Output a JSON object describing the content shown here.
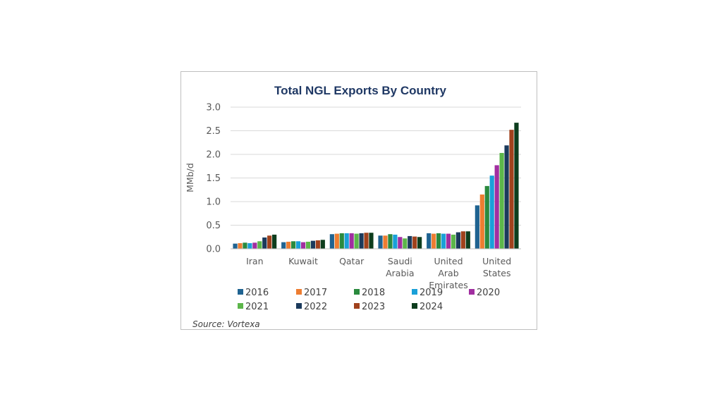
{
  "chart_data": {
    "type": "bar",
    "title": "Total NGL Exports By Country",
    "ylabel": "MMb/d",
    "xlabel": "",
    "ylim": [
      0,
      3.0
    ],
    "yticks": [
      "0.0",
      "0.5",
      "1.0",
      "1.5",
      "2.0",
      "2.5",
      "3.0"
    ],
    "grid": true,
    "legend_position": "bottom",
    "categories": [
      [
        "Iran"
      ],
      [
        "Kuwait"
      ],
      [
        "Qatar"
      ],
      [
        "Saudi",
        "Arabia"
      ],
      [
        "United",
        "Arab",
        "Emirates"
      ],
      [
        "United",
        "States"
      ]
    ],
    "series": [
      {
        "name": "2016",
        "color": "#1f6391",
        "values": [
          0.11,
          0.14,
          0.31,
          0.28,
          0.33,
          0.92
        ]
      },
      {
        "name": "2017",
        "color": "#ed7d31",
        "values": [
          0.12,
          0.15,
          0.32,
          0.28,
          0.32,
          1.15
        ]
      },
      {
        "name": "2018",
        "color": "#2a8a3e",
        "values": [
          0.13,
          0.16,
          0.33,
          0.31,
          0.33,
          1.33
        ]
      },
      {
        "name": "2019",
        "color": "#1aa0d8",
        "values": [
          0.12,
          0.16,
          0.33,
          0.3,
          0.32,
          1.55
        ]
      },
      {
        "name": "2020",
        "color": "#a12ea0",
        "values": [
          0.13,
          0.14,
          0.33,
          0.25,
          0.32,
          1.77
        ]
      },
      {
        "name": "2021",
        "color": "#5cb64a",
        "values": [
          0.16,
          0.15,
          0.32,
          0.22,
          0.3,
          2.03
        ]
      },
      {
        "name": "2022",
        "color": "#1b3a5c",
        "values": [
          0.24,
          0.17,
          0.33,
          0.27,
          0.35,
          2.19
        ]
      },
      {
        "name": "2023",
        "color": "#a0411c",
        "values": [
          0.28,
          0.18,
          0.34,
          0.26,
          0.37,
          2.52
        ]
      },
      {
        "name": "2024",
        "color": "#0d3d1d",
        "values": [
          0.3,
          0.19,
          0.34,
          0.25,
          0.37,
          2.67
        ]
      }
    ],
    "source": "Source: Vortexa"
  }
}
